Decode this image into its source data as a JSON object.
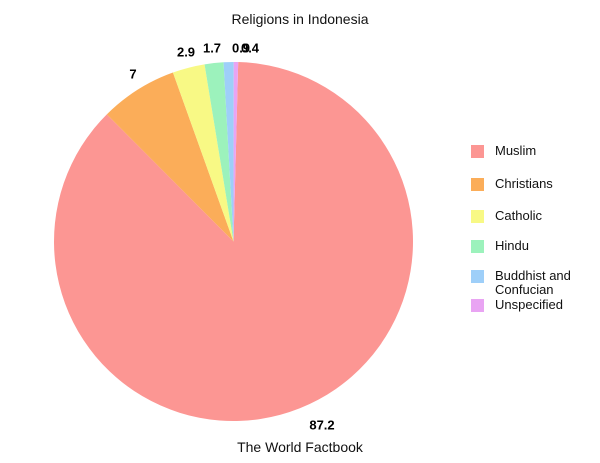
{
  "chart_data": {
    "type": "pie",
    "title": "Religions in Indonesia",
    "caption": "The World Factbook",
    "categories": [
      "Muslim",
      "Christians",
      "Catholic",
      "Hindu",
      "Buddhist and Confucian",
      "Unspecified"
    ],
    "values": [
      87.2,
      7,
      2.9,
      1.7,
      0.9,
      0.4
    ],
    "value_labels": [
      "87.2",
      "7",
      "2.9",
      "1.7",
      "0.9",
      "0.4"
    ],
    "colors": [
      "#FC9693",
      "#FBAD59",
      "#F8F985",
      "#9CF2BC",
      "#9ECFF9",
      "#E9A4F3"
    ],
    "legend_position": "right",
    "start_angle_deg": 88.5,
    "direction": "clockwise",
    "grid": false
  }
}
